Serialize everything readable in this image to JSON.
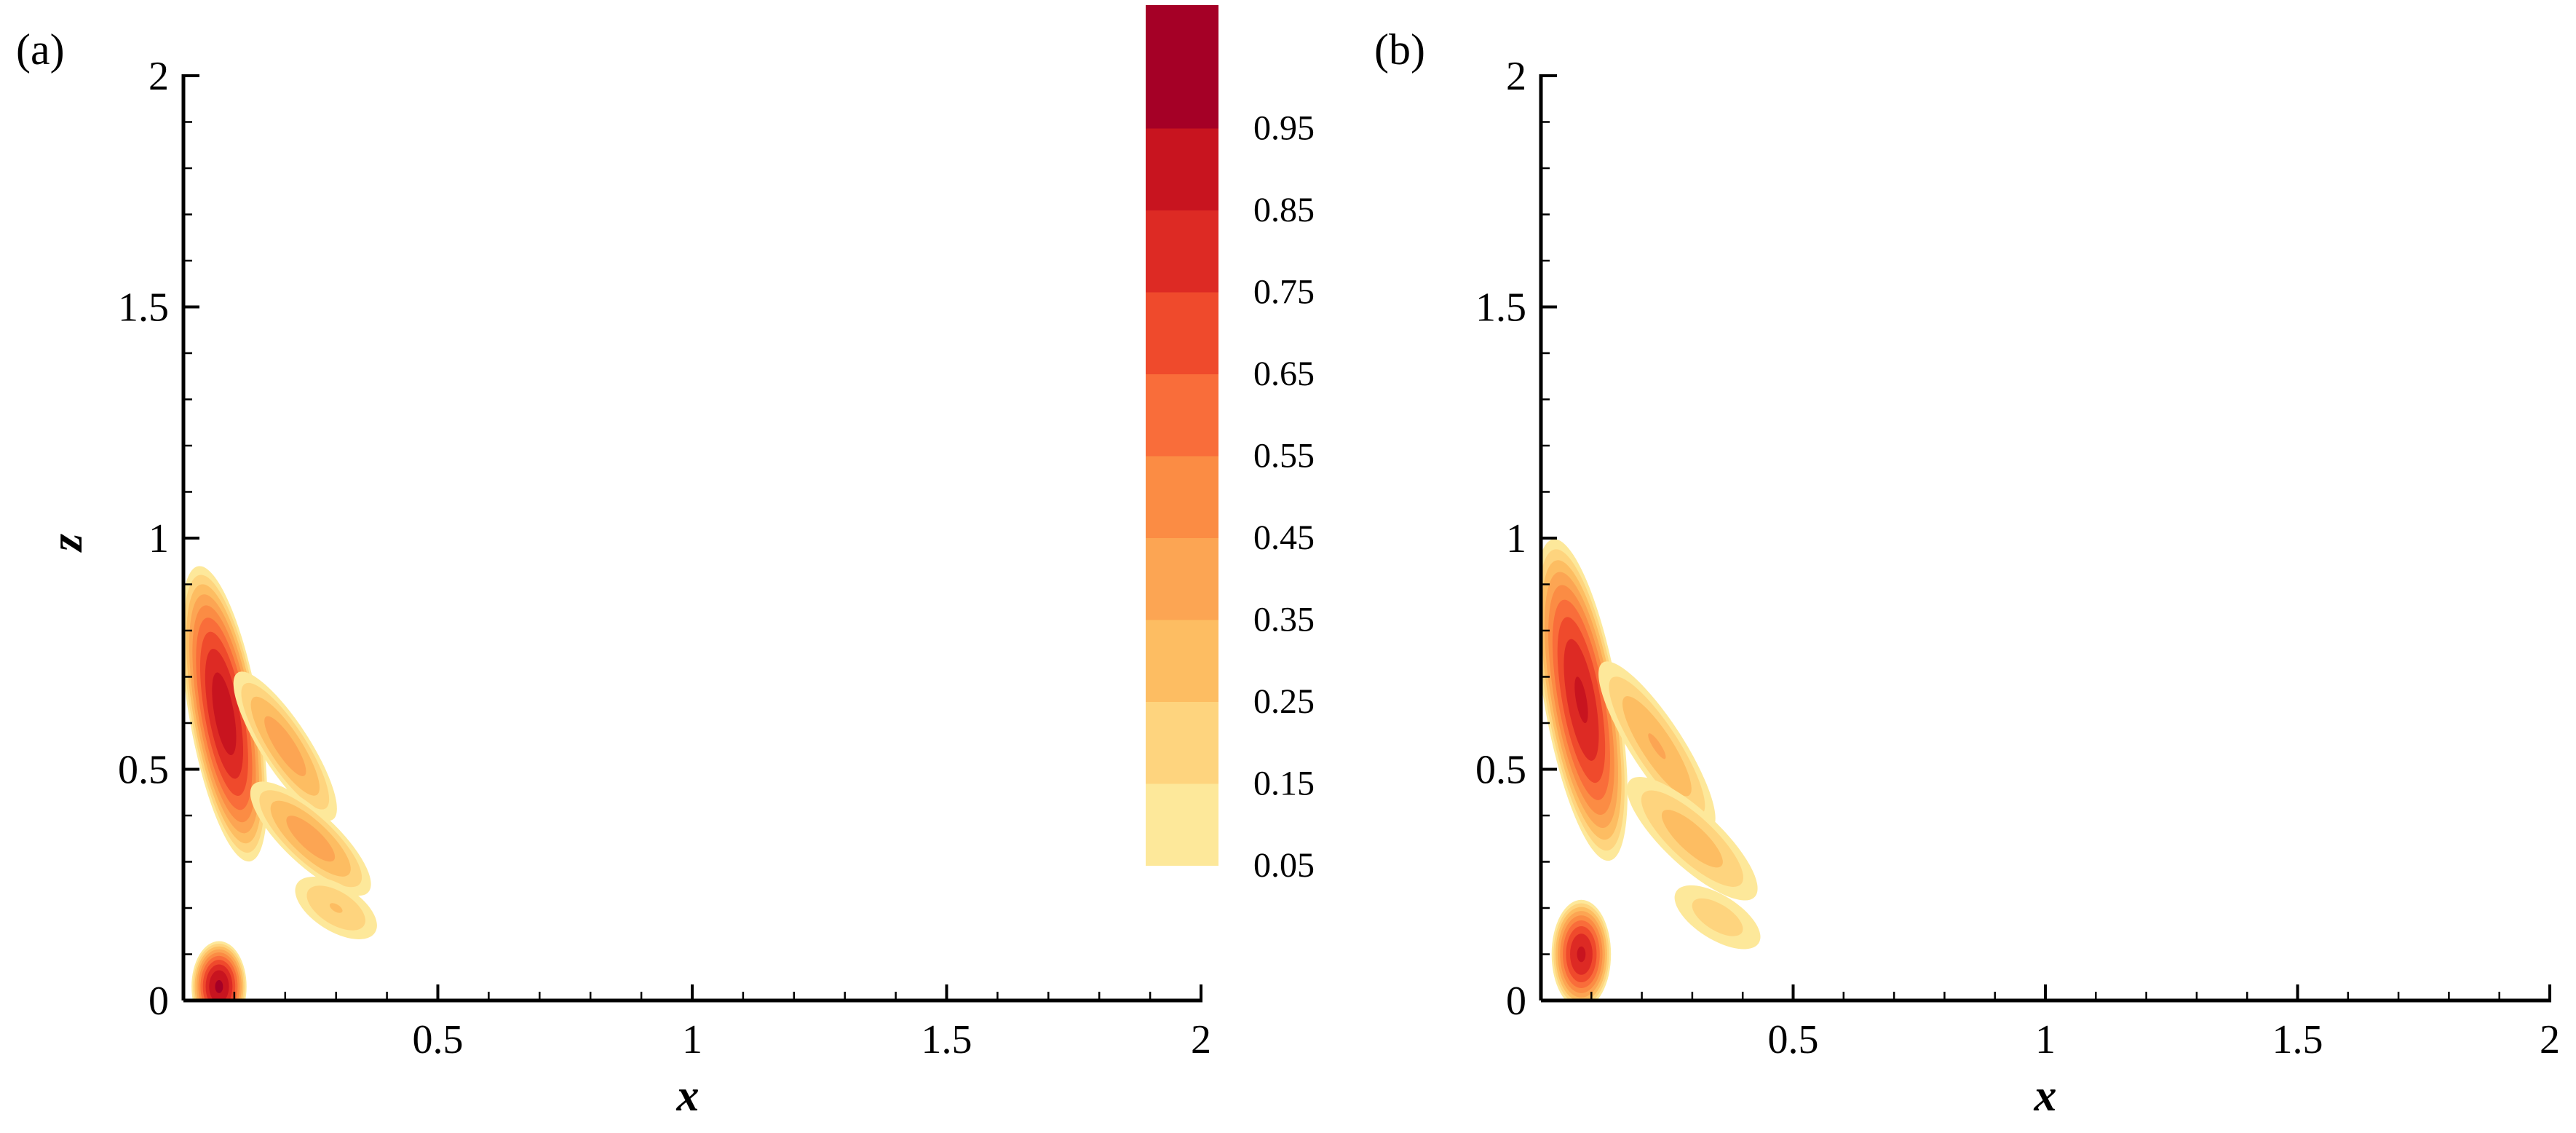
{
  "chart_data": [
    {
      "type": "heatmap",
      "panel_label": "(a)",
      "xlabel": "x",
      "ylabel": "z",
      "xlim": [
        0,
        2
      ],
      "ylim": [
        0,
        2
      ],
      "xticks": [
        "0.5",
        "1",
        "1.5",
        "2"
      ],
      "yticks": [
        "0",
        "0.5",
        "1",
        "1.5",
        "2"
      ],
      "contour_levels": [
        0.05,
        0.15,
        0.25,
        0.35,
        0.45,
        0.55,
        0.65,
        0.75,
        0.85,
        0.95
      ],
      "lobes": [
        {
          "center_x": 0.08,
          "center_z": 0.62,
          "peak": 0.9,
          "extent_x": 0.07,
          "extent_z": 0.33,
          "tilt_deg": -10
        },
        {
          "center_x": 0.2,
          "center_z": 0.55,
          "peak": 0.4,
          "extent_x": 0.05,
          "extent_z": 0.2,
          "tilt_deg": -33
        },
        {
          "center_x": 0.25,
          "center_z": 0.35,
          "peak": 0.4,
          "extent_x": 0.055,
          "extent_z": 0.18,
          "tilt_deg": -47
        },
        {
          "center_x": 0.3,
          "center_z": 0.2,
          "peak": 0.25,
          "extent_x": 0.05,
          "extent_z": 0.11,
          "tilt_deg": -58
        },
        {
          "center_x": 0.07,
          "center_z": 0.03,
          "peak": 0.95,
          "extent_x": 0.055,
          "extent_z": 0.1,
          "tilt_deg": 0
        }
      ]
    },
    {
      "type": "heatmap",
      "panel_label": "(b)",
      "xlabel": "x",
      "ylabel": "",
      "xlim": [
        0,
        2
      ],
      "ylim": [
        0,
        2
      ],
      "xticks": [
        "0.5",
        "1",
        "1.5",
        "2"
      ],
      "yticks": [
        "0",
        "0.5",
        "1",
        "1.5",
        "2"
      ],
      "contour_levels": [
        0.05,
        0.15,
        0.25,
        0.35,
        0.45,
        0.55,
        0.65,
        0.75,
        0.85,
        0.95
      ],
      "lobes": [
        {
          "center_x": 0.08,
          "center_z": 0.65,
          "peak": 0.85,
          "extent_x": 0.075,
          "extent_z": 0.36,
          "tilt_deg": -10
        },
        {
          "center_x": 0.23,
          "center_z": 0.55,
          "peak": 0.35,
          "extent_x": 0.055,
          "extent_z": 0.23,
          "tilt_deg": -33
        },
        {
          "center_x": 0.3,
          "center_z": 0.35,
          "peak": 0.3,
          "extent_x": 0.06,
          "extent_z": 0.2,
          "tilt_deg": -47
        },
        {
          "center_x": 0.35,
          "center_z": 0.18,
          "peak": 0.2,
          "extent_x": 0.05,
          "extent_z": 0.12,
          "tilt_deg": -58
        },
        {
          "center_x": 0.08,
          "center_z": 0.1,
          "peak": 0.85,
          "extent_x": 0.06,
          "extent_z": 0.12,
          "tilt_deg": 0
        }
      ]
    }
  ],
  "colorbar": {
    "labels": [
      "0.95",
      "0.85",
      "0.75",
      "0.65",
      "0.55",
      "0.45",
      "0.35",
      "0.25",
      "0.15",
      "0.05"
    ],
    "colors": [
      "#fde89a",
      "#fed47e",
      "#fdbd62",
      "#fca553",
      "#fb8c44",
      "#f96d3a",
      "#ef4a2c",
      "#dd2a24",
      "#c8141f",
      "#a50026"
    ]
  }
}
